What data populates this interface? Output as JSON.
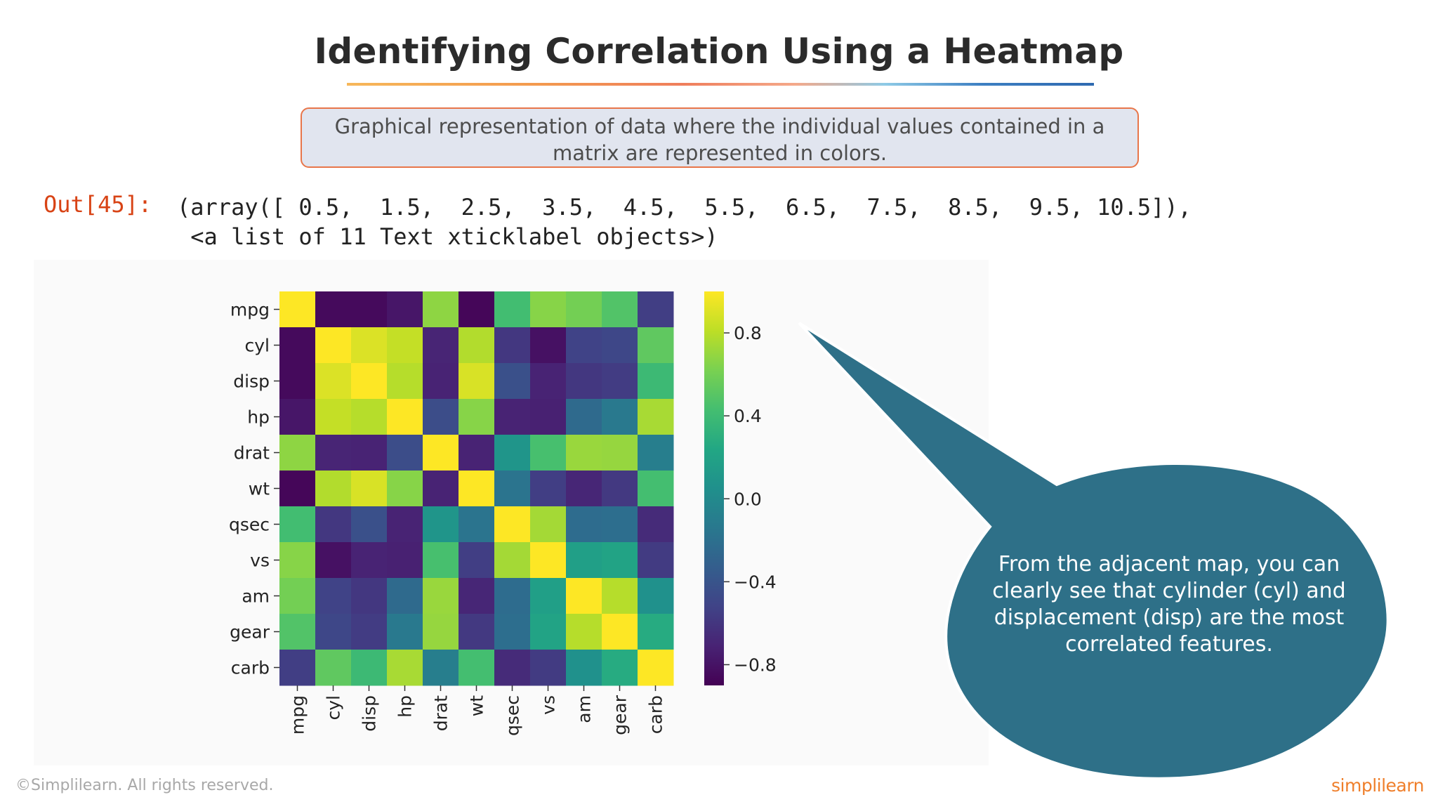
{
  "slide": {
    "title": "Identifying Correlation Using a Heatmap",
    "definition": "Graphical representation of data where the individual values contained in a matrix are represented in colors.",
    "copyright": "©Simplilearn. All rights reserved.",
    "logo": "simplilearn"
  },
  "notebook": {
    "out_prompt": "Out[45]:",
    "out_line1": "(array([ 0.5,  1.5,  2.5,  3.5,  4.5,  5.5,  6.5,  7.5,  8.5,  9.5, 10.5]),",
    "out_line2": " <a list of 11 Text xticklabel objects>)"
  },
  "callout": {
    "text": "From the adjacent map, you can clearly see that cylinder (cyl) and displacement (disp) are the most correlated features."
  },
  "chart_data": {
    "type": "heatmap",
    "colormap": "viridis",
    "title": "",
    "xlabel": "",
    "ylabel": "",
    "x_labels": [
      "mpg",
      "cyl",
      "disp",
      "hp",
      "drat",
      "wt",
      "qsec",
      "vs",
      "am",
      "gear",
      "carb"
    ],
    "y_labels": [
      "mpg",
      "cyl",
      "disp",
      "hp",
      "drat",
      "wt",
      "qsec",
      "vs",
      "am",
      "gear",
      "carb"
    ],
    "vmin": -0.9,
    "vmax": 1.0,
    "colorbar_ticks": [
      {
        "value": 0.8,
        "label": "0.8"
      },
      {
        "value": 0.4,
        "label": "0.4"
      },
      {
        "value": 0.0,
        "label": "0.0"
      },
      {
        "value": -0.4,
        "label": "−0.4"
      },
      {
        "value": -0.8,
        "label": "−0.8"
      }
    ],
    "values": [
      [
        1.0,
        -0.85,
        -0.85,
        -0.78,
        0.68,
        -0.87,
        0.42,
        0.66,
        0.6,
        0.48,
        -0.55
      ],
      [
        -0.85,
        1.0,
        0.9,
        0.83,
        -0.7,
        0.78,
        -0.59,
        -0.81,
        -0.52,
        -0.49,
        0.53
      ],
      [
        -0.85,
        0.9,
        1.0,
        0.79,
        -0.71,
        0.89,
        -0.43,
        -0.71,
        -0.59,
        -0.56,
        0.39
      ],
      [
        -0.78,
        0.83,
        0.79,
        1.0,
        -0.45,
        0.66,
        -0.71,
        -0.72,
        -0.24,
        -0.13,
        0.75
      ],
      [
        0.68,
        -0.7,
        -0.71,
        -0.45,
        1.0,
        -0.71,
        0.09,
        0.44,
        0.71,
        0.7,
        -0.09
      ],
      [
        -0.87,
        0.78,
        0.89,
        0.66,
        -0.71,
        1.0,
        -0.17,
        -0.55,
        -0.69,
        -0.58,
        0.43
      ],
      [
        0.42,
        -0.59,
        -0.43,
        -0.71,
        0.09,
        -0.17,
        1.0,
        0.74,
        -0.23,
        -0.21,
        -0.66
      ],
      [
        0.66,
        -0.81,
        -0.71,
        -0.72,
        0.44,
        -0.55,
        0.74,
        1.0,
        0.17,
        0.21,
        -0.57
      ],
      [
        0.6,
        -0.52,
        -0.59,
        -0.24,
        0.71,
        -0.69,
        -0.23,
        0.17,
        1.0,
        0.79,
        0.06
      ],
      [
        0.48,
        -0.49,
        -0.56,
        -0.13,
        0.7,
        -0.58,
        -0.21,
        0.21,
        0.79,
        1.0,
        0.27
      ],
      [
        -0.55,
        0.53,
        0.39,
        0.75,
        -0.09,
        0.43,
        -0.66,
        -0.57,
        0.06,
        0.27,
        1.0
      ]
    ]
  },
  "colors": {
    "callout_fill": "#2e7088",
    "callout_stroke": "#ffffff",
    "prompt": "#d84315",
    "box_border": "#e8764a",
    "box_fill": "#e1e5ef"
  }
}
